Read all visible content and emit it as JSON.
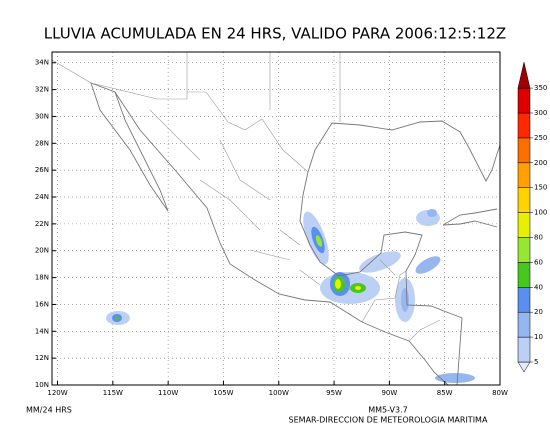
{
  "map": {
    "title": "LLUVIA ACUMULADA EN 24 HRS, VALIDO PARA 2006:12:5:12Z",
    "latlim": [
      10,
      34.8
    ],
    "lonlim": [
      -120.5,
      -80
    ],
    "lat_ticks": [
      {
        "value": 10,
        "label": "10N"
      },
      {
        "value": 12,
        "label": "12N"
      },
      {
        "value": 14,
        "label": "14N"
      },
      {
        "value": 16,
        "label": "16N"
      },
      {
        "value": 18,
        "label": "18N"
      },
      {
        "value": 20,
        "label": "20N"
      },
      {
        "value": 22,
        "label": "22N"
      },
      {
        "value": 24,
        "label": "24N"
      },
      {
        "value": 26,
        "label": "26N"
      },
      {
        "value": 28,
        "label": "28N"
      },
      {
        "value": 30,
        "label": "30N"
      },
      {
        "value": 32,
        "label": "32N"
      },
      {
        "value": 34,
        "label": "34N"
      }
    ],
    "lon_ticks": [
      {
        "value": -120,
        "label": "120W"
      },
      {
        "value": -115,
        "label": "115W"
      },
      {
        "value": -110,
        "label": "110W"
      },
      {
        "value": -105,
        "label": "105W"
      },
      {
        "value": -100,
        "label": "100W"
      },
      {
        "value": -95,
        "label": "95W"
      },
      {
        "value": -90,
        "label": "90W"
      },
      {
        "value": -85,
        "label": "85W"
      },
      {
        "value": -80,
        "label": "80W"
      }
    ]
  },
  "colorbar": {
    "levels": [
      5,
      10,
      20,
      40,
      60,
      80,
      100,
      150,
      200,
      250,
      300,
      350
    ],
    "colors": [
      "#e4e9fb",
      "#bcd0f5",
      "#96b6f0",
      "#5a8ff0",
      "#46c81e",
      "#96e632",
      "#e6f000",
      "#ffd200",
      "#ffa000",
      "#ff6e00",
      "#ff2800",
      "#dc0000",
      "#a00000"
    ]
  },
  "footer": {
    "units": "MM/24 HRS",
    "model": "MM5-V3.7",
    "source": "SEMAR-DIRECCION DE METEOROLOGIA MARITIMA"
  }
}
